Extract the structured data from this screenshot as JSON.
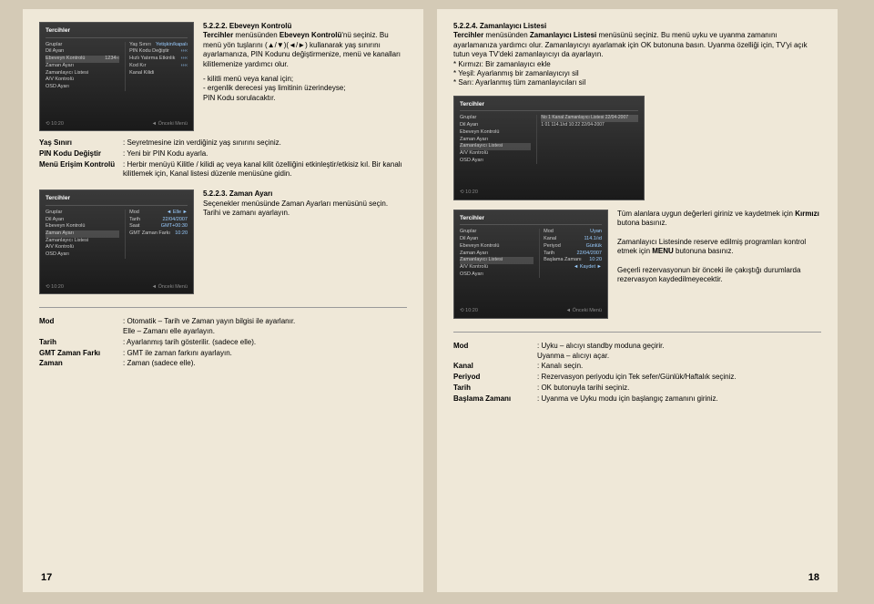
{
  "left": {
    "page_number": "17",
    "section_522": {
      "title": "5.2.2.2. Ebeveyn Kontrolü",
      "body": "Tercihler menüsünden Ebeveyn Kontrolü'nü seçiniz. Bu menü yön tuşlarını (▲/▼)(◄/►) kullanarak yaş sınırını ayarlamanıza, PIN Kodunu değiştirmenize, menü ve kanalları kilitlemenize yardımcı olur.",
      "note": "- kilitli menü veya kanal için;\n- ergenlik derecesi yaş limitinin üzerindeyse;\nPIN Kodu sorulacaktır.",
      "shot": {
        "title": "Tercihler",
        "items": [
          [
            "Gruplar",
            ""
          ],
          [
            "Dil Ayarı",
            ""
          ],
          [
            "Ebeveyn Kontrolü",
            "1234‹‹"
          ],
          [
            "Zaman Ayarı",
            ""
          ],
          [
            "Zamanlayıcı Listesi",
            ""
          ],
          [
            "A/V Kontrolü",
            ""
          ],
          [
            "OSD Ayarı",
            ""
          ]
        ],
        "sub": [
          [
            "Yaş Sınırı",
            "Yetişkin/kapalı"
          ],
          [
            "PIN Kodu Değiştir",
            "‹‹‹‹"
          ],
          [
            "Hızlı Yatırma Etkinlik",
            "‹‹‹‹"
          ],
          [
            "Kod Kır",
            "‹‹‹‹"
          ],
          [
            "Kanal Kilidi",
            ""
          ]
        ],
        "footer_l": "⟲ 10:20",
        "footer_r": "◄ Önceki Menü"
      }
    },
    "defs_522": [
      {
        "k": "Yaş Sınırı",
        "v": ": Seyretmesine izin verdiğiniz yaş sınırını seçiniz."
      },
      {
        "k": "PIN Kodu Değiştir",
        "v": ": Yeni bir PIN Kodu ayarla."
      },
      {
        "k": "Menü Erişim Kontrolü",
        "v": ": Herbir menüyü Kilitle / kilidi aç veya kanal kilit özelliğini etkinleştir/etkisiz kıl. Bir kanalı kilitlemek için, Kanal listesi düzenle menüsüne gidin."
      }
    ],
    "section_523": {
      "title": "5.2.2.3. Zaman Ayarı",
      "body": "Seçenekler menüsünde Zaman Ayarları menüsünü seçin. Tarihi ve zamanı ayarlayın.",
      "shot": {
        "title": "Tercihler",
        "items": [
          [
            "Gruplar",
            ""
          ],
          [
            "Dil Ayarı",
            ""
          ],
          [
            "Ebeveyn Kontrolü",
            ""
          ],
          [
            "Zaman Ayarı",
            ""
          ],
          [
            "Zamanlayıcı Listesi",
            ""
          ],
          [
            "A/V Kontrolü",
            ""
          ],
          [
            "OSD Ayarı",
            ""
          ]
        ],
        "sub": [
          [
            "Mod",
            "◄ Elle ►"
          ],
          [
            "Tarih",
            "22/04/2007"
          ],
          [
            "Saat",
            "GMT+00:30"
          ],
          [
            "GMT Zaman Farkı",
            "10:20"
          ]
        ],
        "footer_l": "⟲ 10:20",
        "footer_r": "◄ Önceki Menü"
      }
    },
    "defs_523": [
      {
        "k": "Mod",
        "v": ": Otomatik – Tarih ve Zaman yayın bilgisi ile ayarlanır.\n  Elle – Zamanı elle ayarlayın."
      },
      {
        "k": "Tarih",
        "v": ": Ayarlanmış tarih gösterilir. (sadece elle)."
      },
      {
        "k": "GMT Zaman Farkı",
        "v": ": GMT ile zaman farkını ayarlayın."
      },
      {
        "k": "Zaman",
        "v": ": Zaman (sadece elle)."
      }
    ]
  },
  "right": {
    "page_number": "18",
    "section_524": {
      "title": "5.2.2.4. Zamanlayıcı Listesi",
      "body": "Tercihler menüsünden Zamanlayıcı Listesi menüsünü seçiniz. Bu menü uyku ve uyanma zamanını ayarlamanıza yardımcı olur. Zamanlayıcıyı ayarlamak için OK butonuna basın. Uyanma özelliği için, TV'yi açık tutun veya TV'deki zamanlayıcıyı da ayarlayın.\n* Kırmızı: Bir zamanlayıcı ekle\n* Yeşil: Ayarlanmış bir zamanlayıcıyı sil\n* Sarı: Ayarlanmış tüm zamanlayıcıları sil",
      "shot": {
        "title": "Tercihler",
        "items": [
          [
            "Gruplar",
            ""
          ],
          [
            "Dil Ayarı",
            ""
          ],
          [
            "Ebeveyn Kontrolü",
            ""
          ],
          [
            "Zaman Ayarı",
            ""
          ],
          [
            "Zamanlayıcı Listesi",
            ""
          ],
          [
            "A/V Kontrolü",
            ""
          ],
          [
            "OSD Ayarı",
            ""
          ]
        ],
        "header": "No  1  Kanal  Zamanlayıcı Listesi            22/04-2007",
        "row": "1  01   114.1/ıd   10:22  22/04-2007",
        "footer_l": "⟲ 10:20"
      },
      "shot2": {
        "title": "Tercihler",
        "items": [
          [
            "Gruplar",
            ""
          ],
          [
            "Dil Ayarı",
            ""
          ],
          [
            "Ebeveyn Kontrolü",
            ""
          ],
          [
            "Zaman Ayarı",
            ""
          ],
          [
            "Zamanlayıcı Listesi",
            ""
          ],
          [
            "A/V Kontrolü",
            ""
          ],
          [
            "OSD Ayarı",
            ""
          ]
        ],
        "sub": [
          [
            "Mod",
            "Uyan"
          ],
          [
            "Kanal",
            "114.1/ıd"
          ],
          [
            "Periyod",
            "Günlük"
          ],
          [
            "Tarih",
            "22/04/2007"
          ],
          [
            "Başlama Zamanı",
            "10:20"
          ],
          [
            "",
            "◄ Kaydet ►"
          ]
        ],
        "footer_l": "⟲ 10:20",
        "footer_r": "◄ Önceki Menü"
      },
      "para2": "Tüm alanlara uygun değerleri giriniz ve kaydetmek için Kırmızı butona basınız.\n\nZamanlayıcı Listesinde reserve edilmiş programları kontrol etmek için MENU butonuna basınız.\n\nGeçerli rezervasyonun bir önceki ile çakıştığı durumlarda rezervasyon kaydedilmeyecektir."
    },
    "defs_524": [
      {
        "k": "Mod",
        "v": ": Uyku – alıcıyı standby moduna geçirir.\n  Uyanma – alıcıyı açar."
      },
      {
        "k": "Kanal",
        "v": ": Kanalı seçin."
      },
      {
        "k": "Periyod",
        "v": ": Rezervasyon periyodu için Tek sefer/Günlük/Haftalık seçiniz."
      },
      {
        "k": "Tarih",
        "v": ": OK butonuyla tarihi seçiniz."
      },
      {
        "k": "Başlama Zamanı",
        "v": ": Uyanma ve Uyku modu için başlangıç zamanını giriniz."
      }
    ]
  }
}
